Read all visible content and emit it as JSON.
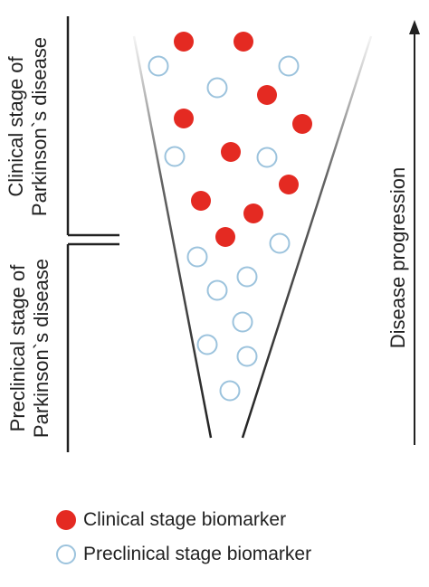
{
  "colors": {
    "clinical_marker": "#e42a22",
    "preclinical_marker_fill": "#ffffff",
    "preclinical_marker_outline": "#9cc3dd",
    "lines": "#222222"
  },
  "labels": {
    "clinical_stage": [
      "Clinical stage of",
      "Parkinson`s disease"
    ],
    "preclinical_stage": [
      "Preclinical stage of",
      "Parkinson`s disease"
    ],
    "disease_progression": "Disease progression"
  },
  "legend": {
    "clinical": "Clinical stage biomarker",
    "preclinical": "Preclinical stage biomarker"
  },
  "icons": [
    "arrow-up-icon",
    "clinical-biomarker-dot",
    "preclinical-biomarker-dot"
  ]
}
